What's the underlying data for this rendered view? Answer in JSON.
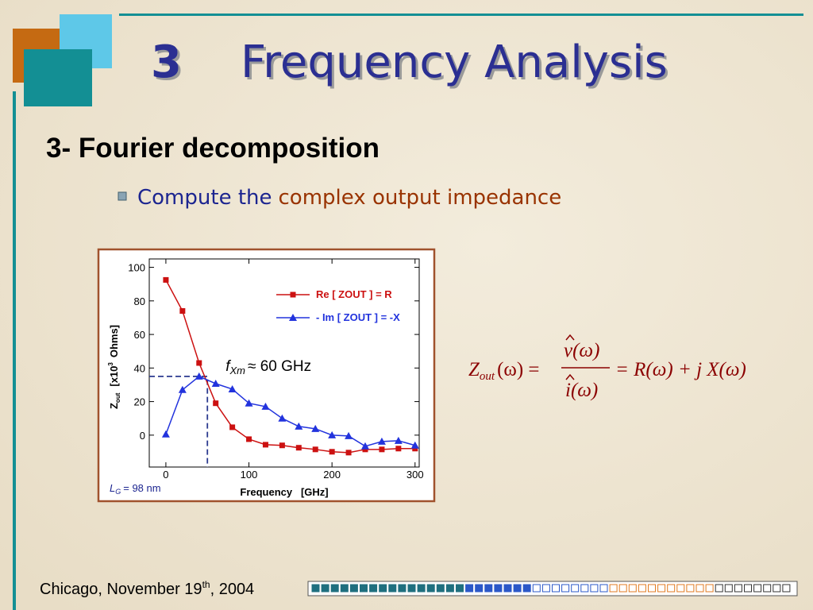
{
  "header": {
    "number": "3",
    "title": "Frequency Analysis"
  },
  "subtitle": "3- Fourier decomposition",
  "bullet": {
    "text": "Compute the",
    "highlight": "complex output impedance"
  },
  "chart_data": {
    "type": "line",
    "x": [
      0,
      20,
      40,
      60,
      80,
      100,
      120,
      140,
      160,
      180,
      200,
      220,
      240,
      260,
      280,
      300
    ],
    "series": [
      {
        "name": "Re [ ZOUT ] = R",
        "color": "#cc1111",
        "marker": "square",
        "values": [
          92.5,
          74,
          43,
          19,
          4.7,
          -2.4,
          -5.7,
          -6.1,
          -7.5,
          -8.5,
          -9.9,
          -10.4,
          -8.5,
          -8.5,
          -8,
          -8
        ]
      },
      {
        "name": "- Im [ ZOUT ] = -X",
        "color": "#2233dd",
        "marker": "triangle",
        "values": [
          0.5,
          27,
          35,
          30.7,
          27.4,
          19,
          17,
          10,
          5.2,
          3.8,
          0,
          -0.5,
          -6.6,
          -3.8,
          -3.3,
          -6.1
        ]
      }
    ],
    "xlim": [
      -20,
      305
    ],
    "ylim": [
      -19,
      105
    ],
    "xticks": [
      0,
      100,
      200,
      300
    ],
    "yticks": [
      0,
      20,
      40,
      60,
      80,
      100
    ],
    "legend": "upper right",
    "xlabel": "Frequency   [GHz]",
    "ylabel": {
      "symbol": "Z",
      "sub": "out",
      "unit": "[x10",
      "exp": "3",
      "unit_end": "Ohms]"
    },
    "reference_point": {
      "x": 50,
      "y": 35
    },
    "annotation": {
      "symbol": "f",
      "sub": "Xm",
      "text": "≈ 60 GHz"
    },
    "note": {
      "symbol": "L",
      "sub": "G",
      "text": "= 98 nm"
    }
  },
  "formula": {
    "lhs": "Z",
    "lhs_sub": "out",
    "lhs_arg": "(ω) =",
    "numerator": "v(ω)",
    "denominator": "i(ω)",
    "rhs": "= R(ω) + j X(ω)"
  },
  "footer": {
    "place": "Chicago, November 19",
    "sup": "th",
    "year": ", 2004"
  }
}
